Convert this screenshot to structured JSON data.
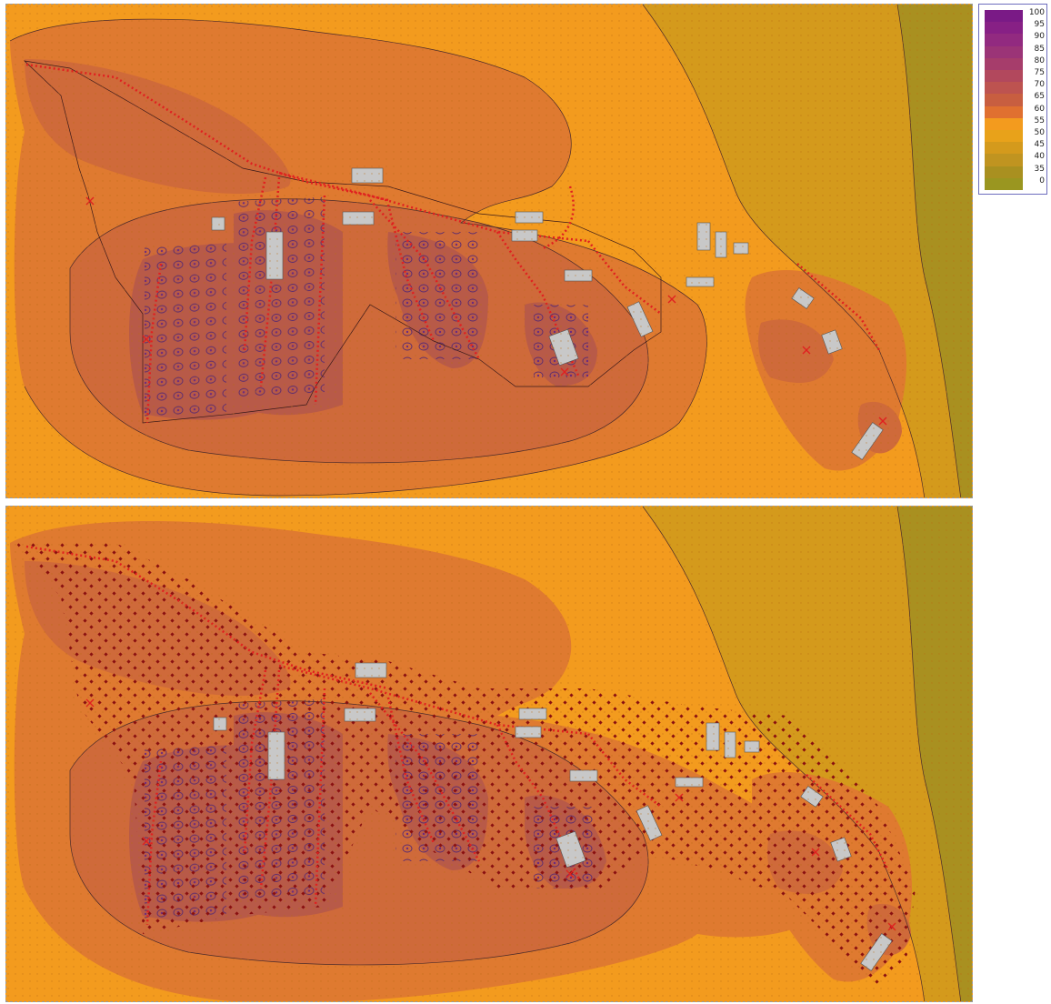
{
  "panels": [
    {
      "id": "top",
      "description_marks": "receptor grid only"
    },
    {
      "id": "bottom",
      "description_marks": "receptor grid with dense sample points"
    }
  ],
  "legend": {
    "entries": [
      {
        "label": "100",
        "color": "#7a1a86"
      },
      {
        "label": "95",
        "color": "#872085"
      },
      {
        "label": "90",
        "color": "#922a80"
      },
      {
        "label": "85",
        "color": "#9b3477"
      },
      {
        "label": "80",
        "color": "#a63d6b"
      },
      {
        "label": "75",
        "color": "#b2485d"
      },
      {
        "label": "70",
        "color": "#bd5350"
      },
      {
        "label": "65",
        "color": "#c85e40"
      },
      {
        "label": "60",
        "color": "#e07030"
      },
      {
        "label": "55",
        "color": "#f39b1e"
      },
      {
        "label": "50",
        "color": "#e8a21a"
      },
      {
        "label": "45",
        "color": "#d49a1c"
      },
      {
        "label": "40",
        "color": "#c09420"
      },
      {
        "label": "35",
        "color": "#a99020"
      },
      {
        "label": "0",
        "color": "#9a9620"
      }
    ]
  },
  "colors": {
    "background": "#f39b1e",
    "far_zone": "#d49a1c",
    "edge_zone": "#a99020",
    "zone_60": "#df7a30",
    "zone_65": "#cf6a3a",
    "zone_70": "#b85a48",
    "track": "#e02020",
    "building": "#c8c8c8",
    "sample_point": "#8a1010"
  }
}
